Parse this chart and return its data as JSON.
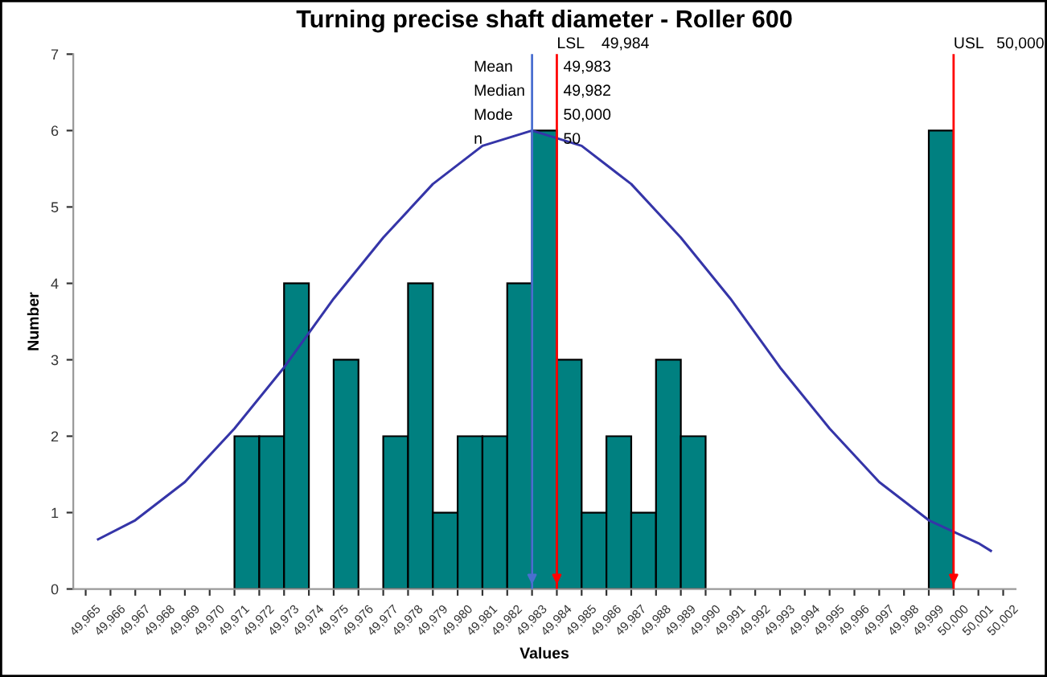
{
  "chart_data": {
    "type": "histogram",
    "title": "Turning precise shaft diameter - Roller 600",
    "xlabel": "Values",
    "ylabel": "Number",
    "bins": [
      49971,
      49972,
      49973,
      49974,
      49975,
      49976,
      49977,
      49978,
      49979,
      49980,
      49981,
      49982,
      49983,
      49984,
      49985,
      49986,
      49987,
      49988,
      49989,
      49990,
      49991,
      49992,
      49993,
      49994,
      49995,
      49996,
      49997,
      49998,
      49999,
      50000
    ],
    "values": [
      2,
      2,
      4,
      0,
      3,
      0,
      2,
      4,
      1,
      2,
      2,
      4,
      6,
      3,
      1,
      2,
      1,
      3,
      2,
      0,
      0,
      0,
      0,
      0,
      0,
      0,
      0,
      0,
      6
    ],
    "color": "#008080",
    "series": [
      {
        "type": "line",
        "color": "#3535a8",
        "x": [
          49965.5,
          49967,
          49969,
          49971,
          49973,
          49975,
          49977,
          49979,
          49981,
          49983,
          49985,
          49987,
          49989,
          49991,
          49993,
          49995,
          49997,
          49999,
          50001,
          50001.5
        ],
        "values": [
          0.65,
          0.9,
          1.4,
          2.1,
          2.9,
          3.8,
          4.6,
          5.3,
          5.8,
          6,
          5.8,
          5.3,
          4.6,
          3.8,
          2.9,
          2.1,
          1.4,
          0.9,
          0.6,
          0.5
        ]
      }
    ],
    "ref_lines": [
      {
        "axis": "x",
        "value": 49983,
        "color": "#4a6fd0"
      },
      {
        "axis": "x",
        "value": 49984,
        "label": "LSL    49,984",
        "color": "#ff0000"
      },
      {
        "axis": "x",
        "value": 50000,
        "label": "USL   50,000",
        "color": "#ff0000"
      }
    ],
    "annotations": [
      "Mean\t49,983",
      "Median\t49,982",
      "Mode\t50,000",
      "n\t50"
    ],
    "xlim": [
      49964.5,
      50002.5
    ],
    "ylim": [
      0,
      7
    ],
    "yticks": [
      0,
      1,
      2,
      3,
      4,
      5,
      6,
      7
    ],
    "xticks": [
      {
        "value": 49965,
        "label": "49,965"
      },
      {
        "value": 49966,
        "label": "49,966"
      },
      {
        "value": 49967,
        "label": "49,967"
      },
      {
        "value": 49968,
        "label": "49,968"
      },
      {
        "value": 49969,
        "label": "49,969"
      },
      {
        "value": 49970,
        "label": "49,970"
      },
      {
        "value": 49971,
        "label": "49,971"
      },
      {
        "value": 49972,
        "label": "49,972"
      },
      {
        "value": 49973,
        "label": "49,973"
      },
      {
        "value": 49974,
        "label": "49,974"
      },
      {
        "value": 49975,
        "label": "49,975"
      },
      {
        "value": 49976,
        "label": "49,976"
      },
      {
        "value": 49977,
        "label": "49,977"
      },
      {
        "value": 49978,
        "label": "49,978"
      },
      {
        "value": 49979,
        "label": "49,979"
      },
      {
        "value": 49980,
        "label": "49,980"
      },
      {
        "value": 49981,
        "label": "49,981"
      },
      {
        "value": 49982,
        "label": "49,982"
      },
      {
        "value": 49983,
        "label": "49,983"
      },
      {
        "value": 49984,
        "label": "49,984"
      },
      {
        "value": 49985,
        "label": "49,985"
      },
      {
        "value": 49986,
        "label": "49,986"
      },
      {
        "value": 49987,
        "label": "49,987"
      },
      {
        "value": 49988,
        "label": "49,988"
      },
      {
        "value": 49989,
        "label": "49,989"
      },
      {
        "value": 49990,
        "label": "49,990"
      },
      {
        "value": 49991,
        "label": "49,991"
      },
      {
        "value": 49992,
        "label": "49,992"
      },
      {
        "value": 49993,
        "label": "49,993"
      },
      {
        "value": 49994,
        "label": "49,994"
      },
      {
        "value": 49995,
        "label": "49,995"
      },
      {
        "value": 49996,
        "label": "49,996"
      },
      {
        "value": 49997,
        "label": "49,997"
      },
      {
        "value": 49998,
        "label": "49,998"
      },
      {
        "value": 49999,
        "label": "49,999"
      },
      {
        "value": 50000,
        "label": "50,000"
      },
      {
        "value": 50001,
        "label": "50,001"
      },
      {
        "value": 50002,
        "label": "50,002"
      }
    ],
    "grid": false,
    "legend": false
  }
}
